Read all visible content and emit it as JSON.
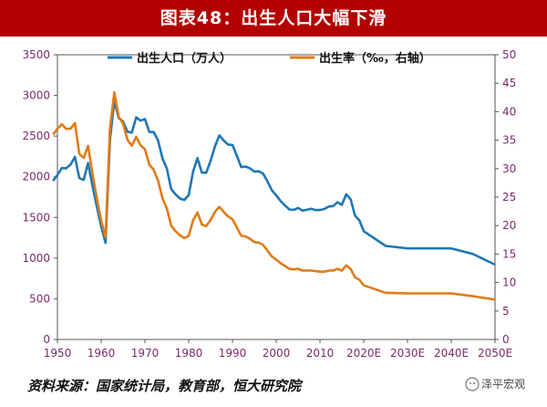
{
  "title": "图表48：出生人口大幅下滑",
  "source": "资料来源：国家统计局，教育部，恒大研究院",
  "watermark": "泽平宏观",
  "colors": {
    "births": "#1f77b4",
    "rate": "#e07b18",
    "title_bg": "#b30000"
  },
  "chart_data": {
    "type": "line",
    "legend_position": "top",
    "grid": false,
    "x_ticks": [
      "1950",
      "1960",
      "1970",
      "1980",
      "1990",
      "2000",
      "2010",
      "2020E",
      "2030E",
      "2040E",
      "2050E"
    ],
    "xlim": [
      1950,
      2050
    ],
    "y_left": {
      "ylim": [
        0,
        3500
      ],
      "ticks": [
        "0",
        "500",
        "1000",
        "1500",
        "2000",
        "2500",
        "3000",
        "3500"
      ]
    },
    "y_right": {
      "ylim": [
        0,
        50
      ],
      "ticks": [
        "0",
        "5",
        "10",
        "15",
        "20",
        "25",
        "30",
        "35",
        "40",
        "45",
        "50"
      ]
    },
    "series": [
      {
        "name": "出生人口（万人）",
        "axis": "left",
        "x": [
          1949,
          1950,
          1951,
          1952,
          1953,
          1954,
          1955,
          1956,
          1957,
          1958,
          1959,
          1960,
          1961,
          1962,
          1963,
          1964,
          1965,
          1966,
          1967,
          1968,
          1969,
          1970,
          1971,
          1972,
          1973,
          1974,
          1975,
          1976,
          1977,
          1978,
          1979,
          1980,
          1981,
          1982,
          1983,
          1984,
          1985,
          1986,
          1987,
          1988,
          1989,
          1990,
          1991,
          1992,
          1993,
          1994,
          1995,
          1996,
          1997,
          1998,
          1999,
          2000,
          2001,
          2002,
          2003,
          2004,
          2005,
          2006,
          2007,
          2008,
          2009,
          2010,
          2011,
          2012,
          2013,
          2014,
          2015,
          2016,
          2017,
          2018,
          2019,
          2020,
          2025,
          2030,
          2035,
          2040,
          2045,
          2050
        ],
        "values": [
          1950,
          2023,
          2107,
          2105,
          2151,
          2245,
          1984,
          1961,
          2169,
          1889,
          1635,
          1389,
          1187,
          2451,
          2934,
          2721,
          2679,
          2554,
          2543,
          2731,
          2690,
          2710,
          2551,
          2550,
          2447,
          2226,
          2102,
          1849,
          1783,
          1733,
          1715,
          1776,
          2064,
          2230,
          2052,
          2050,
          2196,
          2374,
          2508,
          2445,
          2396,
          2391,
          2258,
          2119,
          2126,
          2104,
          2063,
          2067,
          2038,
          1942,
          1834,
          1771,
          1702,
          1647,
          1599,
          1593,
          1617,
          1584,
          1594,
          1608,
          1591,
          1592,
          1604,
          1635,
          1640,
          1687,
          1655,
          1786,
          1723,
          1523,
          1465,
          1330,
          1150,
          1120,
          1120,
          1120,
          1050,
          920
        ]
      },
      {
        "name": "出生率（‰，右轴）",
        "axis": "right",
        "x": [
          1949,
          1950,
          1951,
          1952,
          1953,
          1954,
          1955,
          1956,
          1957,
          1958,
          1959,
          1960,
          1961,
          1962,
          1963,
          1964,
          1965,
          1966,
          1967,
          1968,
          1969,
          1970,
          1971,
          1972,
          1973,
          1974,
          1975,
          1976,
          1977,
          1978,
          1979,
          1980,
          1981,
          1982,
          1983,
          1984,
          1985,
          1986,
          1987,
          1988,
          1989,
          1990,
          1991,
          1992,
          1993,
          1994,
          1995,
          1996,
          1997,
          1998,
          1999,
          2000,
          2001,
          2002,
          2003,
          2004,
          2005,
          2006,
          2007,
          2008,
          2009,
          2010,
          2011,
          2012,
          2013,
          2014,
          2015,
          2016,
          2017,
          2018,
          2019,
          2020,
          2025,
          2030,
          2035,
          2040,
          2045,
          2050
        ],
        "values": [
          36.0,
          37.0,
          37.8,
          37.0,
          37.0,
          38.0,
          32.6,
          31.9,
          34.0,
          29.2,
          24.8,
          20.9,
          18.0,
          37.0,
          43.4,
          39.1,
          37.9,
          35.1,
          34.0,
          35.6,
          34.1,
          33.4,
          30.7,
          29.8,
          27.9,
          24.8,
          23.0,
          20.0,
          19.0,
          18.3,
          17.8,
          18.2,
          20.9,
          22.3,
          20.2,
          19.9,
          21.0,
          22.4,
          23.3,
          22.4,
          21.6,
          21.1,
          19.7,
          18.2,
          18.1,
          17.7,
          17.1,
          17.0,
          16.6,
          15.6,
          14.6,
          14.0,
          13.4,
          12.9,
          12.4,
          12.3,
          12.4,
          12.1,
          12.1,
          12.1,
          12.0,
          11.9,
          11.9,
          12.1,
          12.1,
          12.4,
          12.1,
          13.0,
          12.4,
          10.9,
          10.5,
          9.5,
          8.2,
          8.1,
          8.1,
          8.1,
          7.6,
          7.0
        ]
      }
    ]
  }
}
